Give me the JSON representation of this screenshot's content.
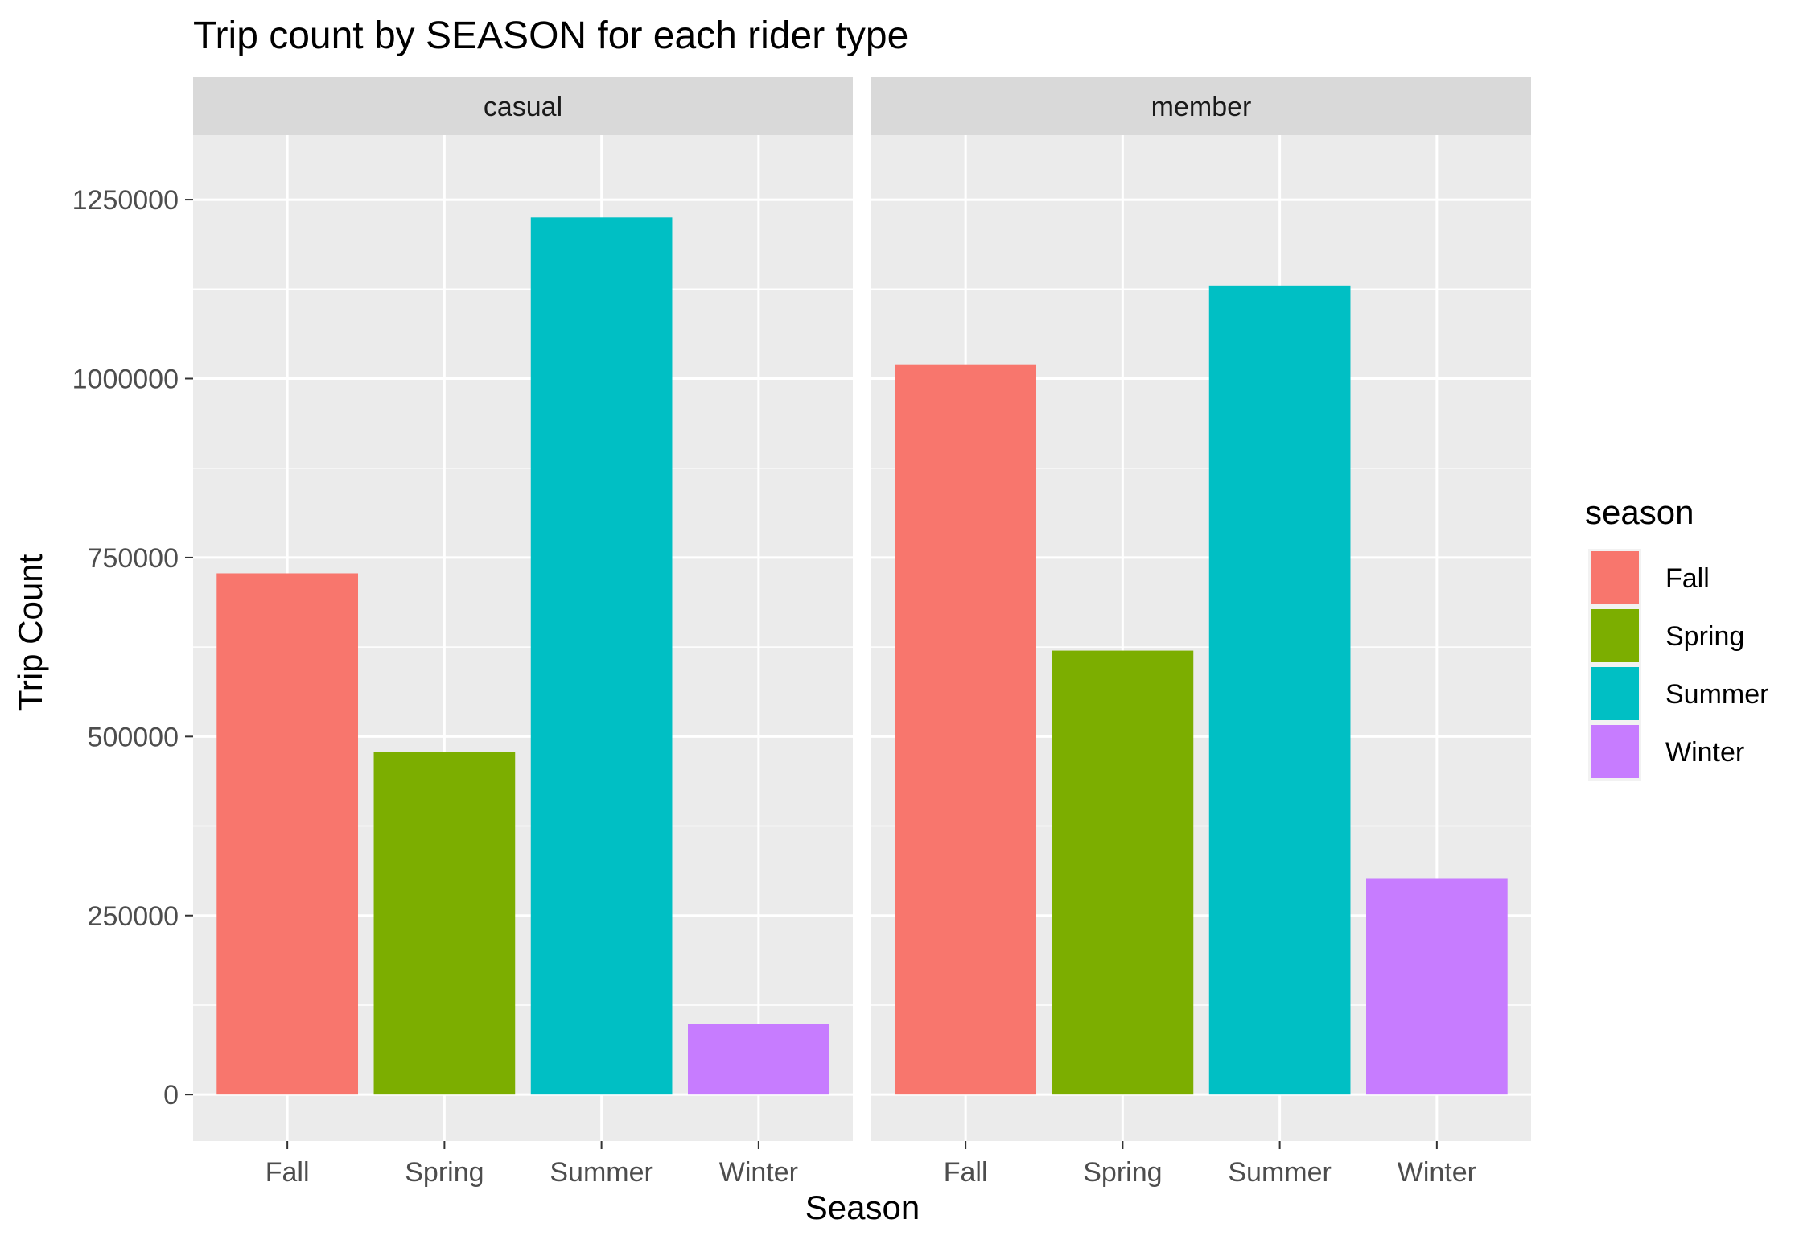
{
  "chart_data": {
    "type": "bar",
    "title": "Trip count by SEASON for each rider type",
    "xlabel": "Season",
    "ylabel": "Trip Count",
    "categories": [
      "Fall",
      "Spring",
      "Summer",
      "Winter"
    ],
    "ylim": [
      -65000,
      1340000
    ],
    "yticks": [
      0,
      250000,
      500000,
      750000,
      1000000,
      1250000
    ],
    "ytick_labels": [
      "0",
      "250000",
      "500000",
      "750000",
      "1000000",
      "1250000"
    ],
    "grid": true,
    "facets": [
      {
        "label": "casual",
        "values": [
          728000,
          478000,
          1225000,
          98000
        ]
      },
      {
        "label": "member",
        "values": [
          1020000,
          620000,
          1130000,
          302000
        ]
      }
    ],
    "legend": {
      "title": "season",
      "position": "right",
      "entries": [
        "Fall",
        "Spring",
        "Summer",
        "Winter"
      ]
    },
    "colors": {
      "Fall": "#F8766D",
      "Spring": "#7CAE00",
      "Summer": "#00BFC4",
      "Winter": "#C77CFF"
    }
  }
}
